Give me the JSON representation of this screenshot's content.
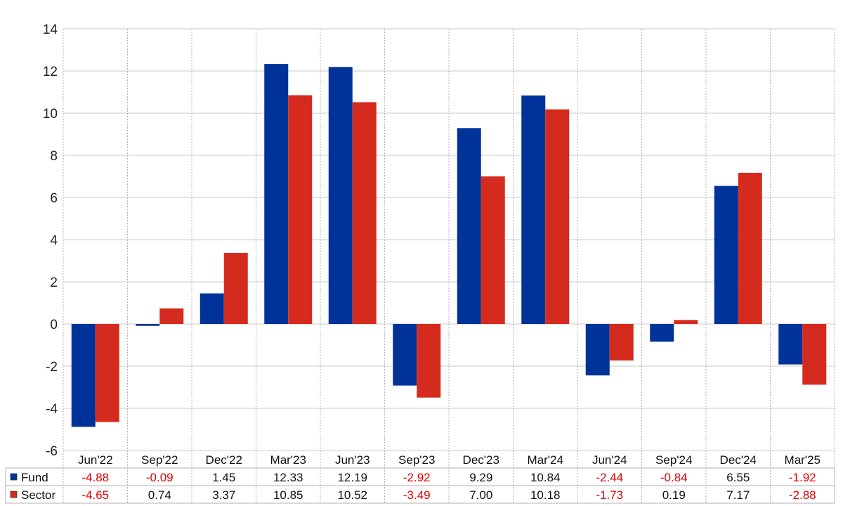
{
  "chart_data": {
    "type": "bar",
    "title": "",
    "xlabel": "",
    "ylabel": "",
    "ylim": [
      -6,
      14
    ],
    "yticks": [
      -6,
      -4,
      -2,
      0,
      2,
      4,
      6,
      8,
      10,
      12,
      14
    ],
    "grid": true,
    "categories": [
      "Jun'22",
      "Sep'22",
      "Dec'22",
      "Mar'23",
      "Jun'23",
      "Sep'23",
      "Dec'23",
      "Mar'24",
      "Jun'24",
      "Sep'24",
      "Dec'24",
      "Mar'25"
    ],
    "series": [
      {
        "name": "Fund",
        "color": "#003399",
        "values": [
          -4.88,
          -0.09,
          1.45,
          12.33,
          12.19,
          -2.92,
          9.29,
          10.84,
          -2.44,
          -0.84,
          6.55,
          -1.92
        ],
        "labels": [
          "-4.88",
          "-0.09",
          "1.45",
          "12.33",
          "12.19",
          "-2.92",
          "9.29",
          "10.84",
          "-2.44",
          "-0.84",
          "6.55",
          "-1.92"
        ]
      },
      {
        "name": "Sector",
        "color": "#d52b1e",
        "values": [
          -4.65,
          0.74,
          3.37,
          10.85,
          10.52,
          -3.49,
          7.0,
          10.18,
          -1.73,
          0.19,
          7.17,
          -2.88
        ],
        "labels": [
          "-4.65",
          "0.74",
          "3.37",
          "10.85",
          "10.52",
          "-3.49",
          "7.00",
          "10.18",
          "-1.73",
          "0.19",
          "7.17",
          "-2.88"
        ]
      }
    ],
    "negative_color": "#e00000",
    "positive_color": "#111111",
    "legend": "data-table-below"
  }
}
